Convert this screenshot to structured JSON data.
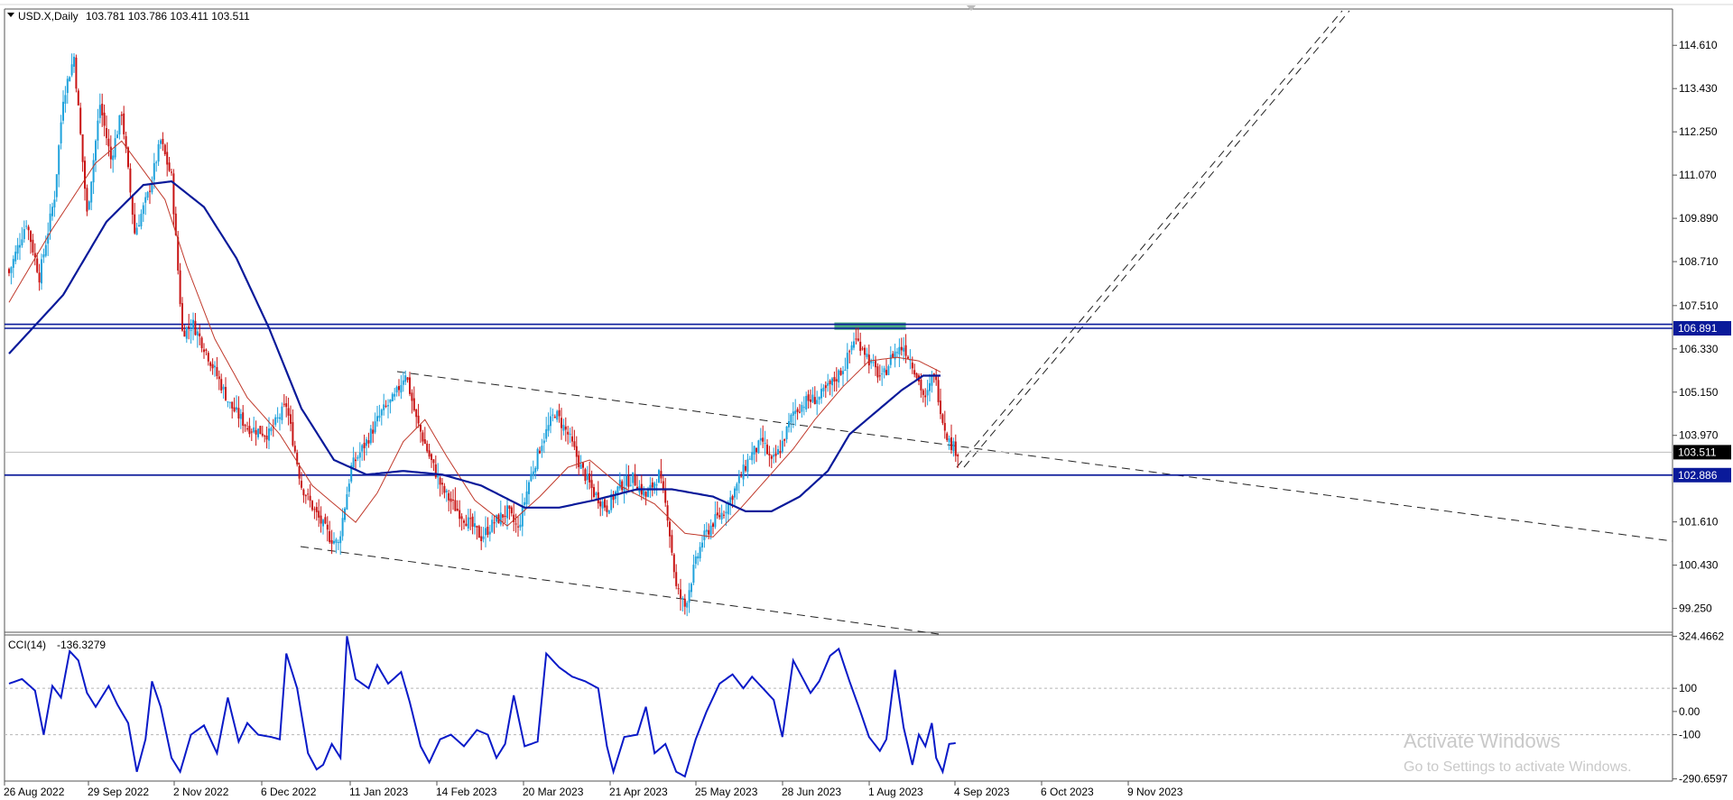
{
  "header": {
    "title": "USD.X,Daily",
    "ohlc": "103.781 103.786 103.411 103.511"
  },
  "indicator": {
    "title": "CCI(14)",
    "value": "-136.3279"
  },
  "watermark": {
    "line1": "Activate Windows",
    "line2": "Go to Settings to activate Windows."
  },
  "colors": {
    "bull": "#1fa2dc",
    "bear": "#c81414",
    "ma_fast": "#c0392b",
    "ma_slow": "#0a1a9a",
    "level": "#0a1a9a",
    "cci": "#0a1ac8",
    "zone": "#2e9e6e"
  },
  "chart_data": [
    {
      "type": "candlestick",
      "symbol": "USD.X",
      "timeframe": "Daily",
      "x_tick_labels": [
        "26 Aug 2022",
        "29 Sep 2022",
        "2 Nov 2022",
        "6 Dec 2022",
        "11 Jan 2023",
        "14 Feb 2023",
        "20 Mar 2023",
        "21 Apr 2023",
        "25 May 2023",
        "28 Jun 2023",
        "1 Aug 2023",
        "4 Sep 2023",
        "6 Oct 2023",
        "9 Nov 2023"
      ],
      "y_tick_labels": [
        "114.610",
        "113.430",
        "112.250",
        "111.070",
        "109.890",
        "108.710",
        "107.510",
        "106.330",
        "105.150",
        "103.970",
        "101.610",
        "100.430",
        "99.250"
      ],
      "ylim": [
        98.6,
        115.6
      ],
      "price_labels": {
        "resistance": "106.891",
        "current": "103.511",
        "support": "102.886"
      },
      "horizontal_levels": [
        107.0,
        106.891,
        102.886
      ],
      "current_price": 103.511,
      "anchors": [
        [
          0,
          108.4
        ],
        [
          8,
          109.8
        ],
        [
          14,
          108.3
        ],
        [
          21,
          110.5
        ],
        [
          25,
          113.2
        ],
        [
          30,
          114.3
        ],
        [
          36,
          110.0
        ],
        [
          42,
          113.0
        ],
        [
          47,
          111.5
        ],
        [
          52,
          112.8
        ],
        [
          58,
          109.5
        ],
        [
          64,
          110.5
        ],
        [
          70,
          112.0
        ],
        [
          75,
          111.0
        ],
        [
          80,
          106.8
        ],
        [
          85,
          107.0
        ],
        [
          90,
          106.4
        ],
        [
          96,
          105.6
        ],
        [
          102,
          104.8
        ],
        [
          110,
          104.2
        ],
        [
          120,
          104.0
        ],
        [
          128,
          104.8
        ],
        [
          135,
          102.6
        ],
        [
          142,
          101.8
        ],
        [
          148,
          101.2
        ],
        [
          152,
          101.0
        ],
        [
          158,
          103.1
        ],
        [
          165,
          103.8
        ],
        [
          172,
          104.6
        ],
        [
          178,
          105.0
        ],
        [
          183,
          105.7
        ],
        [
          188,
          104.4
        ],
        [
          194,
          103.4
        ],
        [
          200,
          102.5
        ],
        [
          206,
          102.0
        ],
        [
          212,
          101.6
        ],
        [
          218,
          101.2
        ],
        [
          224,
          101.6
        ],
        [
          230,
          101.9
        ],
        [
          235,
          101.4
        ],
        [
          240,
          102.7
        ],
        [
          246,
          103.8
        ],
        [
          252,
          104.6
        ],
        [
          258,
          104.0
        ],
        [
          264,
          103.1
        ],
        [
          270,
          102.4
        ],
        [
          276,
          102.0
        ],
        [
          282,
          102.6
        ],
        [
          288,
          102.8
        ],
        [
          294,
          102.3
        ],
        [
          300,
          102.9
        ],
        [
          304,
          101.8
        ],
        [
          308,
          99.8
        ],
        [
          312,
          99.3
        ],
        [
          316,
          100.3
        ],
        [
          320,
          101.1
        ],
        [
          325,
          101.6
        ],
        [
          330,
          101.9
        ],
        [
          336,
          102.6
        ],
        [
          342,
          103.4
        ],
        [
          348,
          103.8
        ],
        [
          352,
          103.2
        ],
        [
          356,
          103.6
        ],
        [
          362,
          104.6
        ],
        [
          368,
          104.9
        ],
        [
          374,
          105.0
        ],
        [
          380,
          105.4
        ],
        [
          386,
          105.9
        ],
        [
          390,
          106.6
        ],
        [
          394,
          106.4
        ],
        [
          398,
          105.9
        ],
        [
          403,
          105.5
        ],
        [
          408,
          106.2
        ],
        [
          413,
          106.4
        ],
        [
          418,
          105.8
        ],
        [
          423,
          104.9
        ],
        [
          427,
          105.7
        ],
        [
          431,
          104.4
        ],
        [
          434,
          103.8
        ],
        [
          438,
          103.511
        ]
      ],
      "ma_fast_anchors": [
        [
          0,
          107.6
        ],
        [
          20,
          109.6
        ],
        [
          40,
          111.4
        ],
        [
          52,
          112.0
        ],
        [
          62,
          111.2
        ],
        [
          72,
          110.4
        ],
        [
          82,
          108.6
        ],
        [
          95,
          106.6
        ],
        [
          110,
          105.0
        ],
        [
          125,
          104.0
        ],
        [
          140,
          102.6
        ],
        [
          160,
          101.6
        ],
        [
          170,
          102.4
        ],
        [
          182,
          103.8
        ],
        [
          192,
          104.4
        ],
        [
          202,
          103.4
        ],
        [
          215,
          102.2
        ],
        [
          230,
          101.5
        ],
        [
          245,
          102.3
        ],
        [
          258,
          103.1
        ],
        [
          268,
          103.3
        ],
        [
          282,
          102.6
        ],
        [
          298,
          102.1
        ],
        [
          312,
          101.3
        ],
        [
          325,
          101.2
        ],
        [
          338,
          102.0
        ],
        [
          350,
          102.8
        ],
        [
          362,
          103.6
        ],
        [
          372,
          104.4
        ],
        [
          385,
          105.3
        ],
        [
          397,
          106.0
        ],
        [
          410,
          106.1
        ],
        [
          420,
          106.0
        ],
        [
          430,
          105.7
        ]
      ],
      "ma_slow_anchors": [
        [
          0,
          106.2
        ],
        [
          25,
          107.8
        ],
        [
          45,
          109.8
        ],
        [
          62,
          110.8
        ],
        [
          75,
          110.9
        ],
        [
          90,
          110.2
        ],
        [
          105,
          108.8
        ],
        [
          120,
          106.9
        ],
        [
          135,
          104.7
        ],
        [
          150,
          103.3
        ],
        [
          165,
          102.9
        ],
        [
          182,
          103.0
        ],
        [
          200,
          102.9
        ],
        [
          218,
          102.6
        ],
        [
          238,
          102.0
        ],
        [
          254,
          102.0
        ],
        [
          270,
          102.2
        ],
        [
          290,
          102.5
        ],
        [
          306,
          102.5
        ],
        [
          325,
          102.3
        ],
        [
          340,
          101.9
        ],
        [
          352,
          101.9
        ],
        [
          365,
          102.3
        ],
        [
          378,
          103.0
        ],
        [
          388,
          104.0
        ],
        [
          400,
          104.6
        ],
        [
          412,
          105.2
        ],
        [
          422,
          105.6
        ],
        [
          430,
          105.6
        ]
      ],
      "cci": {
        "title": "CCI(14)",
        "current_value": "-136.3279",
        "y_tick_labels": [
          "324.4662",
          "100",
          "0.00",
          "-100",
          "-290.6597"
        ],
        "ylim": [
          -300,
          330
        ],
        "levels": [
          100,
          -100
        ],
        "anchors": [
          [
            0,
            120
          ],
          [
            6,
            140
          ],
          [
            12,
            90
          ],
          [
            16,
            -100
          ],
          [
            20,
            110
          ],
          [
            24,
            60
          ],
          [
            28,
            260
          ],
          [
            32,
            220
          ],
          [
            36,
            80
          ],
          [
            40,
            20
          ],
          [
            46,
            110
          ],
          [
            50,
            30
          ],
          [
            55,
            -50
          ],
          [
            59,
            -260
          ],
          [
            63,
            -120
          ],
          [
            66,
            130
          ],
          [
            70,
            20
          ],
          [
            75,
            -200
          ],
          [
            79,
            -260
          ],
          [
            84,
            -100
          ],
          [
            90,
            -60
          ],
          [
            96,
            -180
          ],
          [
            101,
            60
          ],
          [
            106,
            -130
          ],
          [
            110,
            -50
          ],
          [
            115,
            -100
          ],
          [
            121,
            -110
          ],
          [
            125,
            -120
          ],
          [
            128,
            250
          ],
          [
            133,
            100
          ],
          [
            138,
            -180
          ],
          [
            142,
            -250
          ],
          [
            145,
            -230
          ],
          [
            149,
            -140
          ],
          [
            153,
            -200
          ],
          [
            156,
            325
          ],
          [
            160,
            140
          ],
          [
            166,
            100
          ],
          [
            170,
            200
          ],
          [
            175,
            120
          ],
          [
            181,
            170
          ],
          [
            185,
            40
          ],
          [
            190,
            -150
          ],
          [
            194,
            -220
          ],
          [
            199,
            -120
          ],
          [
            204,
            -100
          ],
          [
            210,
            -150
          ],
          [
            216,
            -80
          ],
          [
            221,
            -100
          ],
          [
            225,
            -200
          ],
          [
            229,
            -140
          ],
          [
            233,
            70
          ],
          [
            238,
            -150
          ],
          [
            244,
            -130
          ],
          [
            248,
            250
          ],
          [
            254,
            190
          ],
          [
            260,
            150
          ],
          [
            266,
            130
          ],
          [
            272,
            100
          ],
          [
            276,
            -150
          ],
          [
            279,
            -260
          ],
          [
            284,
            -110
          ],
          [
            290,
            -100
          ],
          [
            294,
            20
          ],
          [
            298,
            -180
          ],
          [
            303,
            -140
          ],
          [
            308,
            -260
          ],
          [
            312,
            -280
          ],
          [
            317,
            -120
          ],
          [
            322,
            0
          ],
          [
            328,
            120
          ],
          [
            334,
            160
          ],
          [
            339,
            100
          ],
          [
            343,
            150
          ],
          [
            348,
            100
          ],
          [
            353,
            50
          ],
          [
            357,
            -110
          ],
          [
            362,
            220
          ],
          [
            366,
            150
          ],
          [
            370,
            80
          ],
          [
            374,
            130
          ],
          [
            379,
            240
          ],
          [
            383,
            270
          ],
          [
            388,
            130
          ],
          [
            393,
            0
          ],
          [
            397,
            -110
          ],
          [
            402,
            -170
          ],
          [
            405,
            -120
          ],
          [
            409,
            180
          ],
          [
            413,
            -70
          ],
          [
            417,
            -230
          ],
          [
            420,
            -100
          ],
          [
            423,
            -150
          ],
          [
            426,
            -50
          ],
          [
            428,
            -200
          ],
          [
            431,
            -260
          ],
          [
            434,
            -140
          ],
          [
            437,
            -136
          ]
        ]
      }
    }
  ]
}
